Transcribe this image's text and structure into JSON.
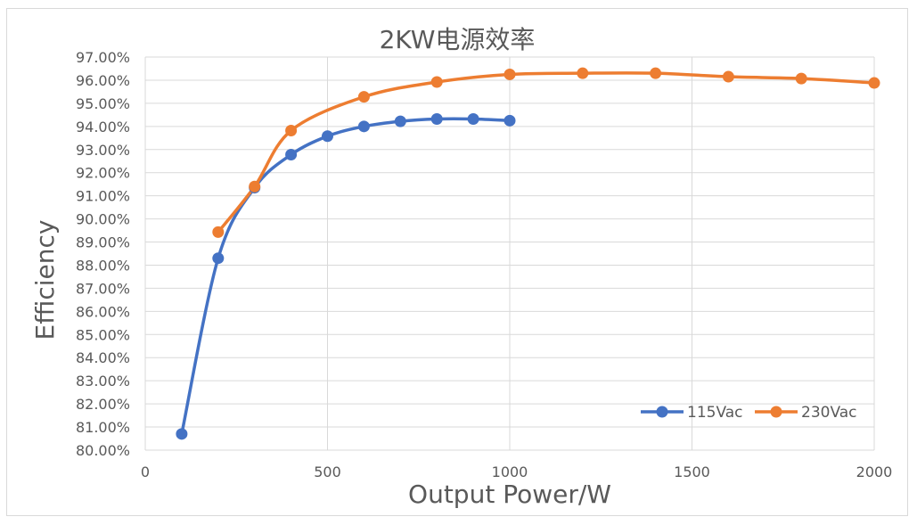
{
  "chart_data": {
    "type": "scatter",
    "title": "2KW电源效率",
    "xlabel": "Output Power/W",
    "ylabel": "Efficiency",
    "xlim": [
      0,
      2000
    ],
    "ylim": [
      0.8,
      0.97
    ],
    "x_ticks": [
      "0",
      "500",
      "1000",
      "1500",
      "2000"
    ],
    "x_tick_values": [
      0,
      500,
      1000,
      1500,
      2000
    ],
    "y_ticks": [
      "80.00%",
      "81.00%",
      "82.00%",
      "83.00%",
      "84.00%",
      "85.00%",
      "86.00%",
      "87.00%",
      "88.00%",
      "89.00%",
      "90.00%",
      "91.00%",
      "92.00%",
      "93.00%",
      "94.00%",
      "95.00%",
      "96.00%",
      "97.00%"
    ],
    "y_tick_values": [
      0.8,
      0.81,
      0.82,
      0.83,
      0.84,
      0.85,
      0.86,
      0.87,
      0.88,
      0.89,
      0.9,
      0.91,
      0.92,
      0.93,
      0.94,
      0.95,
      0.96,
      0.97
    ],
    "grid": true,
    "legend_position": "bottom-right",
    "smooth_lines": true,
    "markers": "circle",
    "series": [
      {
        "name": "115Vac",
        "color": "#4472c4",
        "x": [
          100,
          200,
          300,
          400,
          500,
          600,
          700,
          800,
          900,
          1000
        ],
        "y": [
          0.807,
          0.883,
          0.9135,
          0.9278,
          0.9358,
          0.94,
          0.9422,
          0.9432,
          0.9432,
          0.9425
        ]
      },
      {
        "name": "230Vac",
        "color": "#ed7d31",
        "x": [
          200,
          300,
          400,
          600,
          800,
          1000,
          1200,
          1400,
          1600,
          1800,
          2000
        ],
        "y": [
          0.8943,
          0.914,
          0.9382,
          0.9528,
          0.9592,
          0.9625,
          0.963,
          0.963,
          0.9615,
          0.9607,
          0.9588
        ]
      }
    ]
  }
}
